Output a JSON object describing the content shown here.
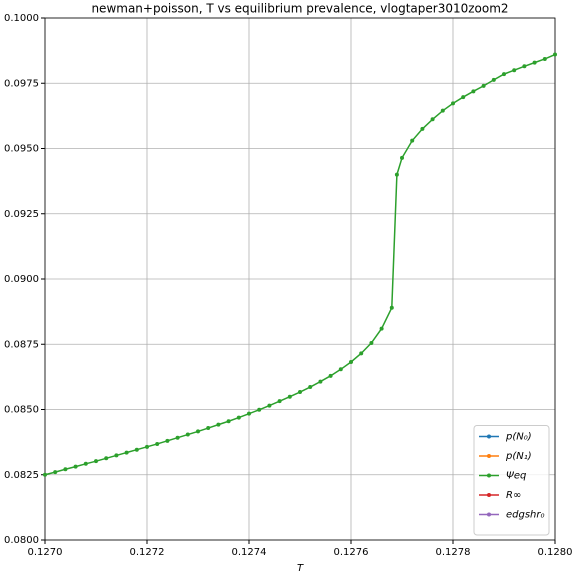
{
  "chart_data": {
    "type": "line",
    "title": "newman+poisson, T vs equilibrium prevalence, vlogtaper3010zoom2",
    "x_label": "T",
    "x": [
      0.127,
      0.12702,
      0.12704,
      0.12706,
      0.12708,
      0.1271,
      0.12712,
      0.12714,
      0.12716,
      0.12718,
      0.1272,
      0.12722,
      0.12724,
      0.12726,
      0.12728,
      0.1273,
      0.12732,
      0.12734,
      0.12736,
      0.12738,
      0.1274,
      0.12742,
      0.12744,
      0.12746,
      0.12748,
      0.1275,
      0.12752,
      0.12754,
      0.12756,
      0.12758,
      0.1276,
      0.12762,
      0.12764,
      0.12766,
      0.12768,
      0.12769,
      0.1277,
      0.12772,
      0.12774,
      0.12776,
      0.12778,
      0.1278,
      0.12782,
      0.12784,
      0.12786,
      0.12788,
      0.1279,
      0.12792,
      0.12794,
      0.12796,
      0.12798,
      0.128
    ],
    "series": [
      {
        "name": "p(N₀)",
        "color": "#1f77b4",
        "values": [
          null,
          null,
          null,
          null,
          null,
          null,
          null,
          null,
          null,
          null,
          null,
          null,
          null,
          null,
          null,
          null,
          null,
          null,
          null,
          null,
          null,
          null,
          null,
          null,
          null,
          null,
          null,
          null,
          null,
          null,
          null,
          null,
          null,
          null,
          null,
          null,
          null,
          null,
          null,
          null,
          null,
          null,
          null,
          null,
          null,
          null,
          null,
          null,
          null,
          null,
          null,
          null
        ]
      },
      {
        "name": "p(N₁)",
        "color": "#ff7f0e",
        "values": [
          null,
          null,
          null,
          null,
          null,
          null,
          null,
          null,
          null,
          null,
          null,
          null,
          null,
          null,
          null,
          null,
          null,
          null,
          null,
          null,
          null,
          null,
          null,
          null,
          null,
          null,
          null,
          null,
          null,
          null,
          null,
          null,
          null,
          null,
          null,
          null,
          null,
          null,
          null,
          null,
          null,
          null,
          null,
          null,
          null,
          null,
          null,
          null,
          null,
          null,
          null,
          null
        ]
      },
      {
        "name": "Ψeq",
        "color": "#2ca02c",
        "values": [
          0.0825,
          0.0826,
          0.08271,
          0.08281,
          0.08292,
          0.08302,
          0.08313,
          0.08324,
          0.08335,
          0.08346,
          0.08357,
          0.08368,
          0.0838,
          0.08392,
          0.08404,
          0.08416,
          0.08429,
          0.08442,
          0.08455,
          0.08469,
          0.08484,
          0.08499,
          0.08515,
          0.08532,
          0.08549,
          0.08567,
          0.08586,
          0.08607,
          0.08629,
          0.08654,
          0.08682,
          0.08715,
          0.08755,
          0.0881,
          0.0889,
          0.094,
          0.09464,
          0.0953,
          0.09575,
          0.09612,
          0.09645,
          0.09673,
          0.09697,
          0.09719,
          0.0974,
          0.09763,
          0.09785,
          0.098,
          0.09815,
          0.09829,
          0.09843,
          0.0986
        ]
      },
      {
        "name": "R∞",
        "color": "#d62728",
        "values": [
          null,
          null,
          null,
          null,
          null,
          null,
          null,
          null,
          null,
          null,
          null,
          null,
          null,
          null,
          null,
          null,
          null,
          null,
          null,
          null,
          null,
          null,
          null,
          null,
          null,
          null,
          null,
          null,
          null,
          null,
          null,
          null,
          null,
          null,
          null,
          null,
          null,
          null,
          null,
          null,
          null,
          null,
          null,
          null,
          null,
          null,
          null,
          null,
          null,
          null,
          null,
          null
        ]
      },
      {
        "name": "edgshr₀",
        "color": "#9467bd",
        "values": [
          null,
          null,
          null,
          null,
          null,
          null,
          null,
          null,
          null,
          null,
          null,
          null,
          null,
          null,
          null,
          null,
          null,
          null,
          null,
          null,
          null,
          null,
          null,
          null,
          null,
          null,
          null,
          null,
          null,
          null,
          null,
          null,
          null,
          null,
          null,
          null,
          null,
          null,
          null,
          null,
          null,
          null,
          null,
          null,
          null,
          null,
          null,
          null,
          null,
          null,
          null,
          null
        ]
      }
    ],
    "xlim": [
      0.127,
      0.128
    ],
    "xticks": [
      {
        "value": 0.127,
        "label": "0.1270"
      },
      {
        "value": 0.1272,
        "label": "0.1272"
      },
      {
        "value": 0.1274,
        "label": "0.1274"
      },
      {
        "value": 0.1276,
        "label": "0.1276"
      },
      {
        "value": 0.1278,
        "label": "0.1278"
      },
      {
        "value": 0.128,
        "label": "0.1280"
      }
    ],
    "ylim": [
      0.08,
      0.1
    ],
    "yticks": [
      {
        "value": 0.08,
        "label": "0.0800"
      },
      {
        "value": 0.0825,
        "label": "0.0825"
      },
      {
        "value": 0.085,
        "label": "0.0850"
      },
      {
        "value": 0.0875,
        "label": "0.0875"
      },
      {
        "value": 0.09,
        "label": "0.0900"
      },
      {
        "value": 0.0925,
        "label": "0.0925"
      },
      {
        "value": 0.095,
        "label": "0.0950"
      },
      {
        "value": 0.0975,
        "label": "0.0975"
      },
      {
        "value": 0.1,
        "label": "0.1000"
      }
    ],
    "grid": true,
    "legend": "lower right"
  }
}
